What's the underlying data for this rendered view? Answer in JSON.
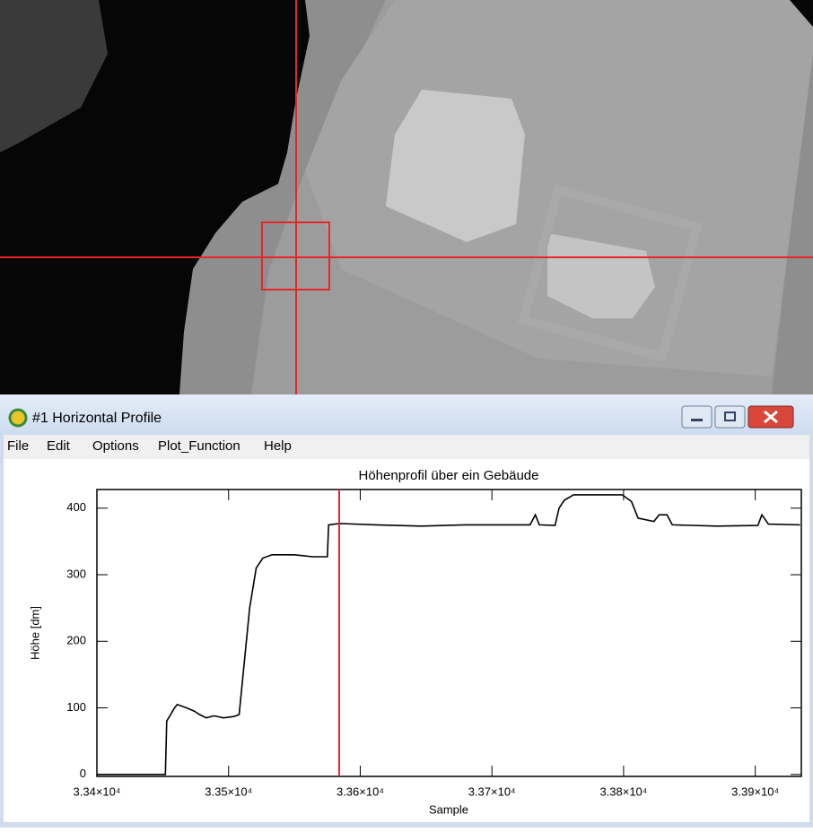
{
  "window": {
    "title": "#1 Horizontal Profile",
    "menu": [
      "File",
      "Edit",
      "Options",
      "Plot_Function",
      "Help"
    ]
  },
  "chart_data": {
    "type": "line",
    "title": "Höhenprofil über ein Gebäude",
    "x_label": "Sample",
    "y_label": "Höhe [dm]",
    "x": [
      33400,
      33452,
      33453,
      33459,
      33461,
      33468,
      33474,
      33478,
      33483,
      33489,
      33496,
      33504,
      33508,
      33511,
      33516,
      33521,
      33526,
      33533,
      33550,
      33564,
      33575,
      33576,
      33584,
      33612,
      33646,
      33680,
      33729,
      33733,
      33736,
      33748,
      33751,
      33755,
      33762,
      33799,
      33806,
      33811,
      33823,
      33827,
      33833,
      33837,
      33871,
      33902,
      33905,
      33910,
      33934
    ],
    "values": [
      0,
      0,
      80,
      100,
      105,
      100,
      95,
      90,
      85,
      88,
      85,
      87,
      90,
      150,
      250,
      310,
      325,
      330,
      330,
      327,
      327,
      375,
      377,
      375,
      373,
      375,
      375,
      390,
      375,
      374,
      400,
      412,
      420,
      420,
      410,
      385,
      380,
      390,
      390,
      375,
      373,
      374,
      390,
      376,
      375
    ],
    "color": "#000000",
    "marker_x": 33584,
    "marker_color": "#e8262a",
    "xlim": [
      33400,
      33935
    ],
    "ylim": [
      -3,
      428
    ],
    "xticks": [
      {
        "value": 33400,
        "label": "3.34×10⁴"
      },
      {
        "value": 33500,
        "label": "3.35×10⁴"
      },
      {
        "value": 33600,
        "label": "3.36×10⁴"
      },
      {
        "value": 33700,
        "label": "3.37×10⁴"
      },
      {
        "value": 33800,
        "label": "3.38×10⁴"
      },
      {
        "value": 33900,
        "label": "3.39×10⁴"
      }
    ],
    "yticks": [
      0,
      100,
      200,
      300,
      400
    ]
  }
}
